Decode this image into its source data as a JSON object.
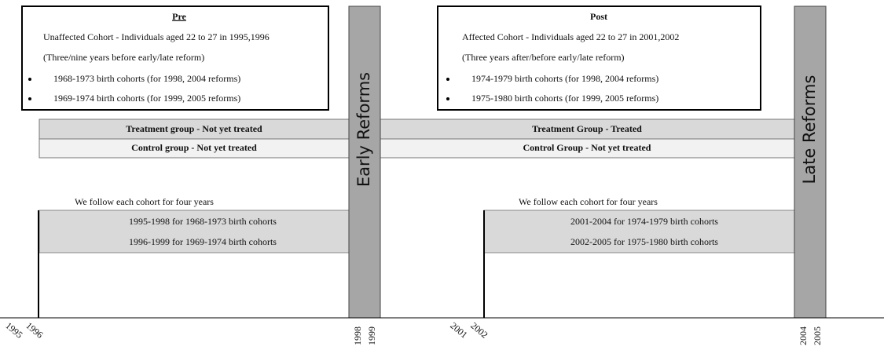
{
  "pre": {
    "title": "Pre",
    "lines": [
      "Unaffected Cohort - Individuals aged 22 to 27 in 1995,1996",
      "(Three/nine years before early/late reform)"
    ],
    "bullets": [
      "1968-1973 birth cohorts (for 1998, 2004 reforms)",
      "1969-1974 birth cohorts (for 1999, 2005 reforms)"
    ]
  },
  "post": {
    "title": "Post",
    "lines": [
      "Affected Cohort - Individuals aged 22 to 27 in 2001,2002",
      "(Three years after/before early/late reform)"
    ],
    "bullets": [
      "1974-1979 birth cohorts (for 1998, 2004 reforms)",
      "1975-1980 birth cohorts (for 1999, 2005 reforms)"
    ]
  },
  "reforms": {
    "early": "Early Reforms",
    "late": "Late Reforms"
  },
  "groups": {
    "pre_treatment": "Treatment group - Not yet treated",
    "pre_control": "Control group - Not yet treated",
    "post_treatment": "Treatment Group -  Treated",
    "post_control": "Control Group - Not yet treated"
  },
  "follow": {
    "pre": {
      "heading": "We follow each cohort for four years",
      "lines": [
        "1995-1998 for 1968-1973 birth cohorts",
        "1996-1999 for 1969-1974 birth cohorts"
      ]
    },
    "post": {
      "heading": "We follow each cohort for four years",
      "lines": [
        "2001-2004 for 1974-1979 birth cohorts",
        "2002-2005 for 1975-1980 birth cohorts"
      ]
    }
  },
  "years": [
    "1995",
    "1996",
    "1998",
    "1999",
    "2001",
    "2002",
    "2004",
    "2005"
  ]
}
